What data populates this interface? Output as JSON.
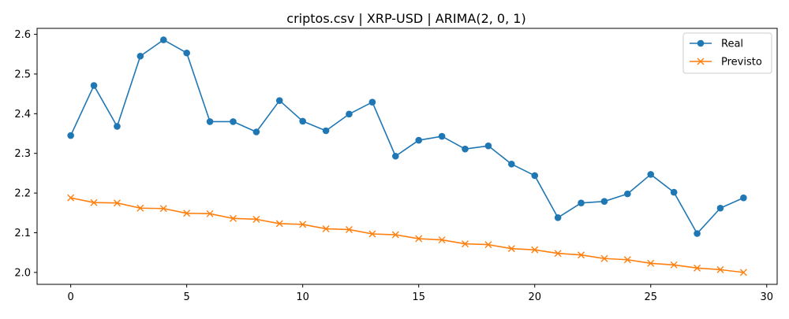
{
  "chart_data": {
    "type": "line",
    "title": "criptos.csv | XRP-USD | ARIMA(2, 0, 1)",
    "xlabel": "",
    "ylabel": "",
    "xlim": [
      -1.45,
      30.45
    ],
    "ylim": [
      1.97,
      2.615
    ],
    "xticks": [
      0,
      5,
      10,
      15,
      20,
      25,
      30
    ],
    "yticks": [
      2.0,
      2.1,
      2.2,
      2.3,
      2.4,
      2.5,
      2.6
    ],
    "ytick_labels": [
      "2.0",
      "2.1",
      "2.2",
      "2.3",
      "2.4",
      "2.5",
      "2.6"
    ],
    "grid": false,
    "legend_position": "top-right",
    "x": [
      0,
      1,
      2,
      3,
      4,
      5,
      6,
      7,
      8,
      9,
      10,
      11,
      12,
      13,
      14,
      15,
      16,
      17,
      18,
      19,
      20,
      21,
      22,
      23,
      24,
      25,
      26,
      27,
      28,
      29
    ],
    "series": [
      {
        "name": "Real",
        "color": "#1f77b4",
        "marker": "circle",
        "values": [
          2.345,
          2.471,
          2.368,
          2.545,
          2.586,
          2.553,
          2.38,
          2.38,
          2.354,
          2.433,
          2.381,
          2.357,
          2.399,
          2.429,
          2.293,
          2.333,
          2.343,
          2.311,
          2.319,
          2.273,
          2.244,
          2.138,
          2.175,
          2.179,
          2.198,
          2.247,
          2.202,
          2.098,
          2.162,
          2.188
        ]
      },
      {
        "name": "Previsto",
        "color": "#ff7f0e",
        "marker": "x",
        "values": [
          2.188,
          2.176,
          2.175,
          2.162,
          2.161,
          2.149,
          2.148,
          2.136,
          2.134,
          2.123,
          2.121,
          2.11,
          2.108,
          2.097,
          2.095,
          2.085,
          2.082,
          2.072,
          2.07,
          2.06,
          2.057,
          2.048,
          2.044,
          2.035,
          2.032,
          2.023,
          2.019,
          2.011,
          2.007,
          2.0
        ]
      }
    ]
  }
}
